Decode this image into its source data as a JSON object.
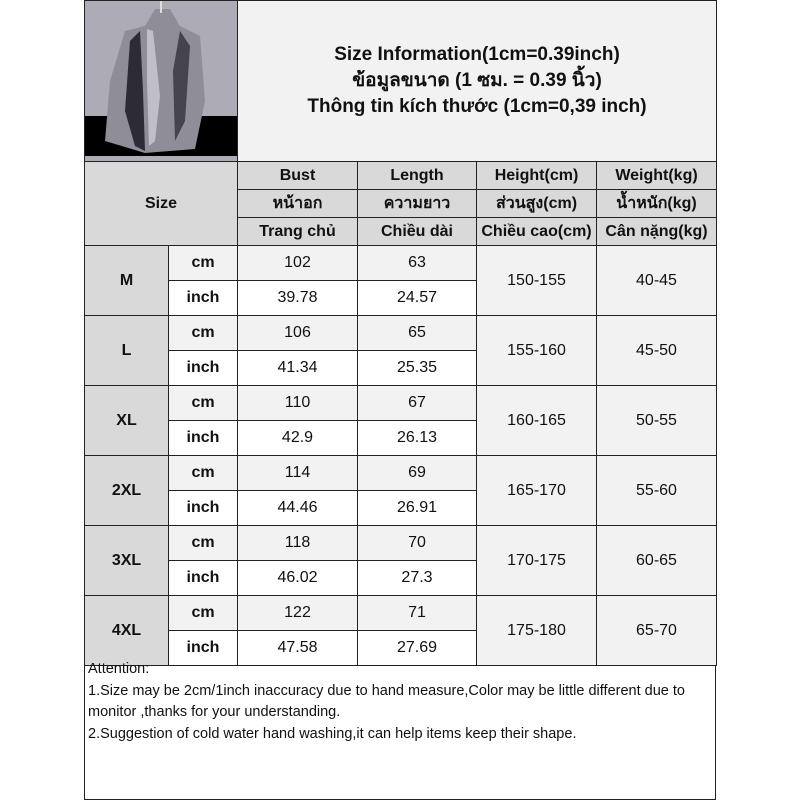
{
  "title": {
    "line1": "Size Information(1cm=0.39inch)",
    "line2": "ข้อมูลขนาด (1 ซม. = 0.39 นิ้ว)",
    "line3": "Thông tin kích thước (1cm=0,39 inch)"
  },
  "size_label": "Size",
  "headers": [
    {
      "en": "Bust",
      "th": "หน้าอก",
      "vi": "Trang chủ"
    },
    {
      "en": "Length",
      "th": "ความยาว",
      "vi": "Chiều dài"
    },
    {
      "en": "Height(cm)",
      "th": "ส่วนสูง(cm)",
      "vi": "Chiều cao(cm)"
    },
    {
      "en": "Weight(kg)",
      "th": "น้ำหนัก(kg)",
      "vi": "Cân nặng(kg)"
    }
  ],
  "units": {
    "cm": "cm",
    "inch": "inch"
  },
  "rows": [
    {
      "size": "M",
      "bust_cm": "102",
      "length_cm": "63",
      "bust_in": "39.78",
      "length_in": "24.57",
      "height": "150-155",
      "weight": "40-45"
    },
    {
      "size": "L",
      "bust_cm": "106",
      "length_cm": "65",
      "bust_in": "41.34",
      "length_in": "25.35",
      "height": "155-160",
      "weight": "45-50"
    },
    {
      "size": "XL",
      "bust_cm": "110",
      "length_cm": "67",
      "bust_in": "42.9",
      "length_in": "26.13",
      "height": "160-165",
      "weight": "50-55"
    },
    {
      "size": "2XL",
      "bust_cm": "114",
      "length_cm": "69",
      "bust_in": "44.46",
      "length_in": "26.91",
      "height": "165-170",
      "weight": "55-60"
    },
    {
      "size": "3XL",
      "bust_cm": "118",
      "length_cm": "70",
      "bust_in": "46.02",
      "length_in": "27.3",
      "height": "170-175",
      "weight": "60-65"
    },
    {
      "size": "4XL",
      "bust_cm": "122",
      "length_cm": "71",
      "bust_in": "47.58",
      "length_in": "27.69",
      "height": "175-180",
      "weight": "65-70"
    }
  ],
  "attention": {
    "heading": "Attention:",
    "note1": "1.Size may be 2cm/1inch inaccuracy due to hand measure,Color may be little different due to monitor ,thanks for your understanding.",
    "note2": "2.Suggestion of cold water hand washing,it can help items keep their shape."
  }
}
